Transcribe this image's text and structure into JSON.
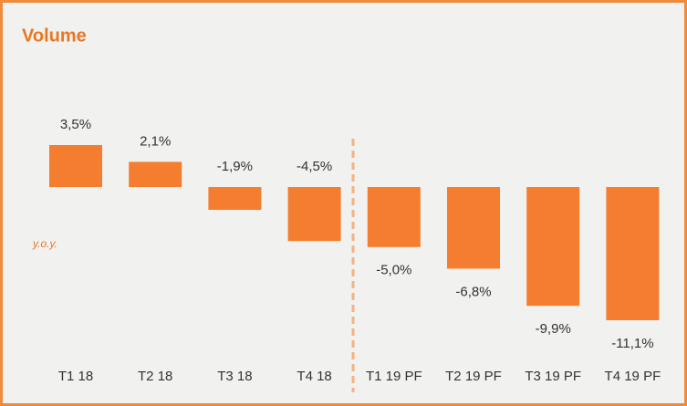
{
  "chart_data": {
    "type": "bar",
    "title": "Volume",
    "annotation": "y.o.y.",
    "categories": [
      "T1 18",
      "T2 18",
      "T3 18",
      "T4 18",
      "T1 19 PF",
      "T2 19 PF",
      "T3 19 PF",
      "T4 19 PF"
    ],
    "values": [
      3.5,
      2.1,
      -1.9,
      -4.5,
      -5.0,
      -6.8,
      -9.9,
      -11.1
    ],
    "value_labels": [
      "3,5%",
      "2,1%",
      "-1,9%",
      "-4,5%",
      "-5,0%",
      "-6,8%",
      "-9,9%",
      "-11,1%"
    ],
    "color": "#f47d30"
  }
}
